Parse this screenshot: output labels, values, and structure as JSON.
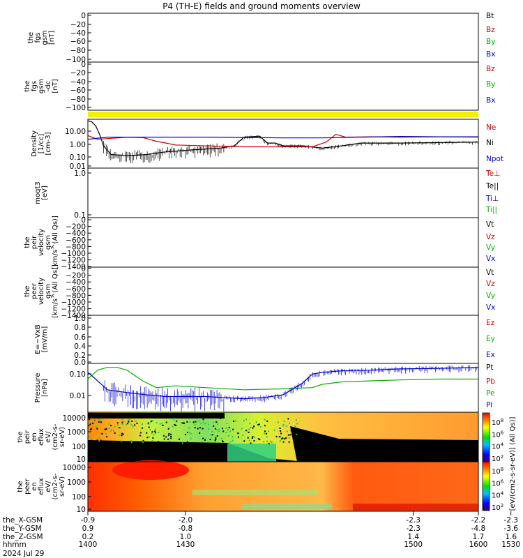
{
  "chart_data": {
    "type": "line",
    "title": "P4 (TH-E) fields and ground moments overview",
    "x_ticks": [
      {
        "hhmm": "1400",
        "x_gsm": "-0.9",
        "y_gsm": "0.9",
        "z_gsm": "0.2"
      },
      {
        "hhmm": "1430",
        "x_gsm": "-2.0",
        "y_gsm": "-0.8",
        "z_gsm": "1.0"
      },
      {
        "hhmm": "1500",
        "x_gsm": "-2.3",
        "y_gsm": "-2.3",
        "z_gsm": "1.4"
      },
      {
        "hhmm": "1530",
        "x_gsm": "-2.3",
        "y_gsm": "-3.6",
        "z_gsm": "1.6"
      },
      {
        "hhmm": "1600",
        "x_gsm": "-2.2",
        "y_gsm": "-4.8",
        "z_gsm": "1.7"
      }
    ],
    "xaxis_labels": [
      "the_X-GSM",
      "the_Y-GSM",
      "the_Z-GSM",
      "hhmm",
      "2024 Jul 29"
    ],
    "x_range": [
      1400,
      1600
    ],
    "panels": [
      {
        "id": "fgs",
        "ylabel": [
          "the",
          "fgs",
          "gsm",
          "[nT]"
        ],
        "ticks": [
          "0",
          "−20",
          "−40",
          "−60",
          "−80",
          "−100"
        ],
        "ylim": [
          -100,
          5
        ],
        "legend": [
          {
            "label": "Bt",
            "color": "#000000"
          },
          {
            "label": "Bz",
            "color": "#d00000"
          },
          {
            "label": "By",
            "color": "#00b000"
          },
          {
            "label": "Bx",
            "color": "#0000d0"
          }
        ]
      },
      {
        "id": "fgs_dc",
        "ylabel": [
          "the",
          "fgs",
          "gsm",
          "-dc",
          "[nT]"
        ],
        "ticks": [
          "0",
          "−20",
          "−40",
          "−60",
          "−80",
          "−100"
        ],
        "ylim": [
          -110,
          5
        ],
        "legend": [
          {
            "label": "Bz",
            "color": "#d00000"
          },
          {
            "label": "By",
            "color": "#00b000"
          },
          {
            "label": "Bx",
            "color": "#0000d0"
          }
        ]
      },
      {
        "id": "density",
        "ylabel": [
          "Density",
          "[1/cc]",
          "[cm-3]"
        ],
        "ticks": [
          "10.00",
          "1.00",
          "0.10",
          "0.01"
        ],
        "scale": "log",
        "ylim": [
          0.005,
          40
        ],
        "legend": [
          {
            "label": "Ne",
            "color": "#d00000"
          },
          {
            "label": "Ni",
            "color": "#000000"
          },
          {
            "label": "Npot",
            "color": "#0000d0"
          }
        ],
        "series": [
          {
            "name": "Ni",
            "color": "#000000",
            "x": [
              1400,
              1402,
              1404,
              1406,
              1408,
              1412,
              1420,
              1430,
              1440,
              1455,
              1468,
              1475,
              1480,
              1488,
              1492,
              1496,
              1500,
              1510,
              1520,
              1530,
              1540,
              1560,
              1580,
              1600
            ],
            "values": [
              30,
              25,
              12,
              2.5,
              0.3,
              0.06,
              0.05,
              0.06,
              0.1,
              0.15,
              0.2,
              0.3,
              1.5,
              1.8,
              0.5,
              0.5,
              0.3,
              0.3,
              0.2,
              0.3,
              0.5,
              0.5,
              0.55,
              0.6
            ]
          },
          {
            "name": "Ne",
            "color": "#d00000",
            "x": [
              1400,
              1405,
              1412,
              1420,
              1428,
              1435,
              1445,
              1460,
              1480,
              1500,
              1515,
              1522,
              1527,
              1532,
              1545,
              1560,
              1580,
              1600
            ],
            "values": [
              2.0,
              1.0,
              1.2,
              1.5,
              1.4,
              0.7,
              0.35,
              0.3,
              0.25,
              0.25,
              0.25,
              0.6,
              2.5,
              1.5,
              1.6,
              1.5,
              1.6,
              1.5
            ]
          },
          {
            "name": "Npot",
            "color": "#0000d0",
            "x": [
              1400,
              1410,
              1420,
              1440,
              1460,
              1480,
              1500,
              1520,
              1540,
              1560,
              1580,
              1600
            ],
            "values": [
              1.0,
              1.5,
              1.5,
              1.5,
              1.5,
              1.4,
              1.3,
              1.3,
              1.5,
              1.7,
              1.6,
              1.6
            ]
          }
        ]
      },
      {
        "id": "temperature",
        "ylabel": [
          "moqt3",
          "[eV]"
        ],
        "ticks": [
          "1.0",
          "0.1"
        ],
        "scale": "log",
        "ylim": [
          0.1,
          1.0
        ],
        "legend": [
          {
            "label": "Te⊥",
            "color": "#d00000"
          },
          {
            "label": "Te||",
            "color": "#000000"
          },
          {
            "label": "Ti⊥",
            "color": "#0000d0"
          },
          {
            "label": "Ti||",
            "color": "#00b000"
          }
        ]
      },
      {
        "id": "peir_velocity",
        "ylabel": [
          "the",
          "peir",
          "velocity",
          "gsm",
          "[km/s^(All Qs)]"
        ],
        "ticks": [
          "0",
          "−200",
          "−400",
          "−600",
          "−800",
          "−1000",
          "−1200",
          "−1400"
        ],
        "ylim": [
          -1400,
          0
        ],
        "legend": [
          {
            "label": "Vt",
            "color": "#000000"
          },
          {
            "label": "Vz",
            "color": "#d00000"
          },
          {
            "label": "Vy",
            "color": "#00b000"
          },
          {
            "label": "Vx",
            "color": "#0000d0"
          }
        ]
      },
      {
        "id": "peer_velocity",
        "ylabel": [
          "the",
          "peer",
          "velocity",
          "gsm",
          "[km/s^(All Qs)]"
        ],
        "ticks": [
          "0",
          "−200",
          "−400",
          "−600",
          "−800",
          "−1000",
          "−1200",
          "−1400"
        ],
        "ylim": [
          -1400,
          0
        ],
        "legend": [
          {
            "label": "Vt",
            "color": "#000000"
          },
          {
            "label": "Vz",
            "color": "#d00000"
          },
          {
            "label": "Vy",
            "color": "#00b000"
          },
          {
            "label": "Vx",
            "color": "#0000d0"
          }
        ]
      },
      {
        "id": "efield",
        "ylabel": [
          "E=−VxB",
          "[mV/m]"
        ],
        "ticks": [
          "1.0",
          "0.8",
          "0.6",
          "0.4",
          "0.2",
          "0.0"
        ],
        "ylim": [
          0,
          1
        ],
        "legend": [
          {
            "label": "Ez",
            "color": "#d00000"
          },
          {
            "label": "Ey",
            "color": "#00b000"
          },
          {
            "label": "Ex",
            "color": "#0000d0"
          }
        ]
      },
      {
        "id": "pressure",
        "ylabel": [
          "Pressure",
          "[nPa]"
        ],
        "ticks": [
          "0.10",
          "0.01"
        ],
        "scale": "log",
        "ylim": [
          0.002,
          0.3
        ],
        "legend": [
          {
            "label": "Pt",
            "color": "#000000"
          },
          {
            "label": "Pb",
            "color": "#d00000"
          },
          {
            "label": "Pe",
            "color": "#00b000"
          },
          {
            "label": "Pi",
            "color": "#0000d0"
          }
        ],
        "series": [
          {
            "name": "Pe",
            "color": "#00b000",
            "x": [
              1400,
              1405,
              1410,
              1415,
              1420,
              1428,
              1435,
              1445,
              1460,
              1480,
              1500,
              1515,
              1520,
              1530,
              1545,
              1560,
              1580,
              1600
            ],
            "values": [
              0.06,
              0.15,
              0.2,
              0.2,
              0.15,
              0.05,
              0.025,
              0.03,
              0.025,
              0.02,
              0.022,
              0.025,
              0.035,
              0.045,
              0.05,
              0.055,
              0.06,
              0.06
            ]
          },
          {
            "name": "Pi",
            "color": "#0000d0",
            "x": [
              1400,
              1404,
              1410,
              1420,
              1430,
              1440,
              1460,
              1480,
              1490,
              1500,
              1510,
              1515,
              1520,
              1530,
              1545,
              1560,
              1580,
              1600
            ],
            "values": [
              0.12,
              0.06,
              0.02,
              0.015,
              0.012,
              0.01,
              0.01,
              0.008,
              0.009,
              0.012,
              0.04,
              0.1,
              0.12,
              0.14,
              0.15,
              0.17,
              0.18,
              0.2
            ]
          }
        ]
      },
      {
        "id": "peir_eflux",
        "type": "heatmap",
        "ylabel": [
          "the",
          "peir",
          "en",
          "eflux",
          "eV/",
          "(cm2-s-",
          "sr-eV)"
        ],
        "ticks": [
          "10000",
          "1000",
          "100",
          "10"
        ],
        "scale": "log"
      },
      {
        "id": "peer_eflux",
        "type": "heatmap",
        "ylabel": [
          "the",
          "peer",
          "en",
          "eflux",
          "eV/",
          "(cm2-s-",
          "sr-eV)"
        ],
        "ticks": [
          "10000",
          "1000",
          "100",
          "10"
        ],
        "scale": "log"
      }
    ],
    "colorbars": [
      {
        "ticks": [
          "10^8",
          "10^6",
          "10^4",
          "10^2"
        ]
      },
      {
        "ticks": [
          "10^8",
          "10^6",
          "10^4",
          "10^2"
        ]
      }
    ],
    "colorbar_label": "[eV/(cm2-s-sr-eV)] (All Qs)]",
    "colors": {
      "yellow_bar": "#f2f200",
      "axis": "#000000"
    }
  }
}
